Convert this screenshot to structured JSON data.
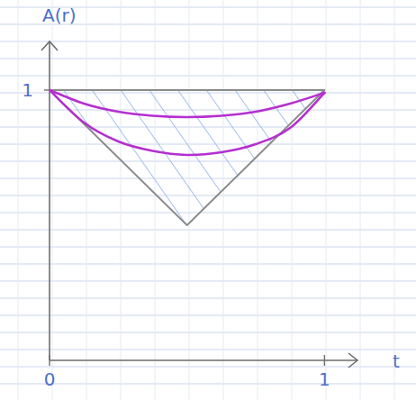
{
  "chart_data": {
    "type": "line",
    "x_label": "t",
    "y_label": "A(r)",
    "x": [
      0,
      0.125,
      0.25,
      0.375,
      0.5,
      0.625,
      0.75,
      0.875,
      1
    ],
    "series": [
      {
        "color": "#8a8a8a",
        "values": [
          1,
          1,
          1,
          1,
          1,
          1,
          1,
          1,
          1
        ]
      },
      {
        "color": "#8a8a8a",
        "values": [
          1,
          0.875,
          0.75,
          0.625,
          0.5,
          0.625,
          0.75,
          0.875,
          1
        ]
      },
      {
        "color": "#b52fd0",
        "values": [
          1,
          0.95,
          0.92,
          0.905,
          0.9,
          0.905,
          0.92,
          0.95,
          0.99
        ]
      },
      {
        "color": "#b52fd0",
        "values": [
          1,
          0.88,
          0.81,
          0.775,
          0.76,
          0.77,
          0.8,
          0.86,
          0.99
        ]
      }
    ],
    "xlim": [
      0,
      1.12
    ],
    "ylim": [
      0,
      1.18
    ],
    "xticks": [
      0,
      1
    ],
    "yticks": [
      1
    ]
  }
}
